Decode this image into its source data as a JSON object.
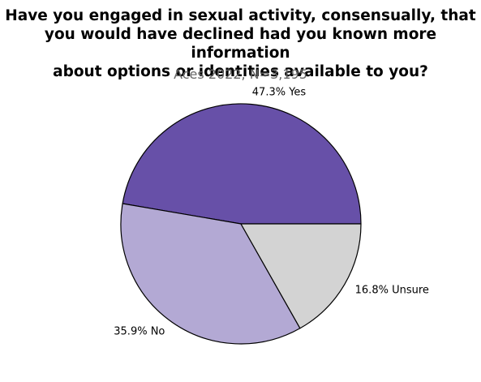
{
  "chart_data": {
    "type": "pie",
    "title": "Have you engaged in sexual activity, consensually, that\nyou would have declined had you known more information\nabout options or identities available to you?",
    "subtitle": "Aces 2022, N=3,195",
    "slices": [
      {
        "label": "47.3% Yes",
        "category": "Yes",
        "value": 47.3,
        "color": "#6750a8"
      },
      {
        "label": "35.9% No",
        "category": "No",
        "value": 35.9,
        "color": "#b3a9d4"
      },
      {
        "label": "16.8% Unsure",
        "category": "Unsure",
        "value": 16.8,
        "color": "#d3d3d3"
      }
    ]
  }
}
